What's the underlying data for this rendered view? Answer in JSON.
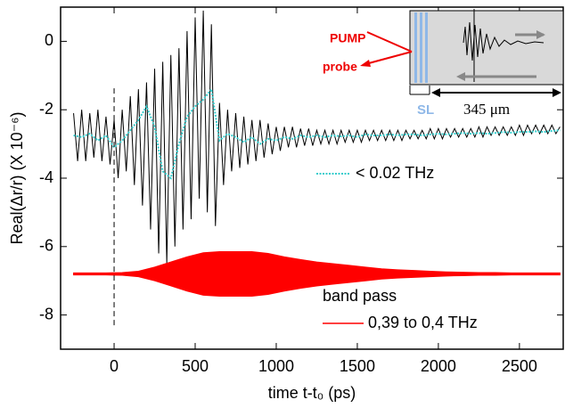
{
  "chart_data": {
    "type": "line",
    "xlabel": "time t-t₀ (ps)",
    "ylabel": "Real(Δr/r) (X 10⁻⁶)",
    "xlim": [
      -330,
      2770
    ],
    "ylim": [
      -9,
      1
    ],
    "xticks": [
      0,
      500,
      1000,
      1500,
      2000,
      2500
    ],
    "yticks": [
      0,
      -2,
      -4,
      -6,
      -8
    ],
    "vline": {
      "x": 0,
      "ymin": -8.3,
      "ymax": -1.3
    },
    "legend_note": "band pass",
    "series": [
      {
        "name": null,
        "color": "#000000",
        "x": [
          -250,
          -225,
          -200,
          -175,
          -150,
          -125,
          -100,
          -75,
          -50,
          -25,
          0,
          25,
          50,
          75,
          100,
          125,
          150,
          175,
          200,
          225,
          250,
          275,
          300,
          325,
          350,
          375,
          400,
          425,
          450,
          475,
          500,
          525,
          550,
          575,
          600,
          625,
          650,
          675,
          700,
          725,
          750,
          775,
          800,
          825,
          850,
          875,
          900,
          925,
          950,
          975,
          1000,
          1025,
          1050,
          1075,
          1100,
          1125,
          1150,
          1175,
          1200,
          1225,
          1250,
          1275,
          1300,
          1325,
          1350,
          1375,
          1400,
          1425,
          1450,
          1475,
          1500,
          1525,
          1550,
          1575,
          1600,
          1625,
          1650,
          1675,
          1700,
          1725,
          1750,
          1775,
          1800,
          1825,
          1850,
          1875,
          1900,
          1925,
          1950,
          1975,
          2000,
          2025,
          2050,
          2075,
          2100,
          2125,
          2150,
          2175,
          2200,
          2225,
          2250,
          2275,
          2300,
          2325,
          2350,
          2375,
          2400,
          2425,
          2450,
          2475,
          2500,
          2525,
          2550,
          2575,
          2600,
          2625,
          2650,
          2675,
          2700,
          2725,
          2750
        ],
        "values": [
          -2.1,
          -3.5,
          -2.0,
          -3.5,
          -2.1,
          -3.4,
          -2.0,
          -3.5,
          -2.2,
          -3.6,
          -2.3,
          -4.0,
          -2.0,
          -3.8,
          -1.6,
          -4.2,
          -1.4,
          -4.8,
          -1.2,
          -5.5,
          -0.8,
          -6.2,
          -0.6,
          -6.5,
          -0.4,
          -6.0,
          -0.2,
          -5.5,
          0.3,
          -5.2,
          0.7,
          -4.6,
          0.9,
          -5.0,
          0.5,
          -5.4,
          -1.8,
          -4.2,
          -2.0,
          -3.8,
          -2.1,
          -3.7,
          -2.2,
          -3.6,
          -2.3,
          -3.5,
          -2.3,
          -3.4,
          -2.4,
          -3.3,
          -2.5,
          -3.2,
          -2.5,
          -3.1,
          -2.5,
          -3.1,
          -2.55,
          -3.05,
          -2.55,
          -3.05,
          -2.6,
          -3.0,
          -2.6,
          -3.0,
          -2.6,
          -3.0,
          -2.6,
          -2.95,
          -2.6,
          -2.95,
          -2.6,
          -2.95,
          -2.6,
          -2.9,
          -2.6,
          -2.9,
          -2.6,
          -2.9,
          -2.6,
          -2.9,
          -2.6,
          -2.9,
          -2.6,
          -2.85,
          -2.6,
          -2.85,
          -2.6,
          -2.85,
          -2.55,
          -2.85,
          -2.55,
          -2.85,
          -2.55,
          -2.8,
          -2.55,
          -2.8,
          -2.55,
          -2.8,
          -2.55,
          -2.8,
          -2.5,
          -2.8,
          -2.5,
          -2.75,
          -2.5,
          -2.75,
          -2.5,
          -2.75,
          -2.5,
          -2.75,
          -2.45,
          -2.75,
          -2.45,
          -2.7,
          -2.45,
          -2.7,
          -2.45,
          -2.7,
          -2.45,
          -2.7,
          -2.5
        ]
      },
      {
        "name": "< 0.02 THz",
        "color": "#33cccc",
        "x": [
          -250,
          -200,
          -150,
          -100,
          -50,
          0,
          50,
          100,
          150,
          200,
          250,
          300,
          350,
          400,
          450,
          500,
          550,
          600,
          650,
          700,
          750,
          800,
          850,
          900,
          950,
          1000,
          1050,
          1100,
          1150,
          1200,
          1250,
          1300,
          1350,
          1400,
          1450,
          1500,
          1550,
          1600,
          1650,
          1700,
          1750,
          1800,
          1850,
          1900,
          1950,
          2000,
          2050,
          2100,
          2150,
          2200,
          2250,
          2300,
          2350,
          2400,
          2450,
          2500,
          2550,
          2600,
          2650,
          2700,
          2750
        ],
        "values": [
          -2.75,
          -2.8,
          -2.7,
          -2.9,
          -2.75,
          -3.1,
          -2.9,
          -2.6,
          -2.3,
          -1.9,
          -2.5,
          -3.8,
          -4.0,
          -3.0,
          -2.2,
          -1.9,
          -1.7,
          -1.4,
          -2.9,
          -2.7,
          -2.8,
          -2.95,
          -2.8,
          -3.0,
          -2.85,
          -2.9,
          -2.8,
          -2.85,
          -2.75,
          -2.8,
          -2.75,
          -2.8,
          -2.75,
          -2.78,
          -2.75,
          -2.8,
          -2.72,
          -2.75,
          -2.75,
          -2.72,
          -2.75,
          -2.72,
          -2.72,
          -2.75,
          -2.72,
          -2.7,
          -2.72,
          -2.7,
          -2.68,
          -2.7,
          -2.68,
          -2.7,
          -2.68,
          -2.65,
          -2.67,
          -2.65,
          -2.65,
          -2.63,
          -2.65,
          -2.62,
          -2.6
        ]
      },
      {
        "name": "0,39 to 0,4 THz",
        "color": "#ff0000",
        "x": [
          -250,
          -150,
          -50,
          50,
          150,
          250,
          350,
          450,
          550,
          650,
          750,
          850,
          950,
          1050,
          1150,
          1250,
          1350,
          1450,
          1550,
          1650,
          1750,
          1850,
          1950,
          2050,
          2150,
          2250,
          2350,
          2450,
          2550,
          2650,
          2750
        ],
        "high": [
          -6.77,
          -6.77,
          -6.77,
          -6.76,
          -6.72,
          -6.6,
          -6.45,
          -6.3,
          -6.18,
          -6.15,
          -6.15,
          -6.15,
          -6.2,
          -6.3,
          -6.38,
          -6.45,
          -6.5,
          -6.55,
          -6.6,
          -6.65,
          -6.68,
          -6.7,
          -6.72,
          -6.74,
          -6.75,
          -6.76,
          -6.76,
          -6.77,
          -6.77,
          -6.77,
          -6.77
        ],
        "low": [
          -6.83,
          -6.83,
          -6.83,
          -6.84,
          -6.88,
          -7.0,
          -7.15,
          -7.3,
          -7.42,
          -7.45,
          -7.45,
          -7.45,
          -7.4,
          -7.3,
          -7.22,
          -7.15,
          -7.1,
          -7.05,
          -7.0,
          -6.95,
          -6.92,
          -6.9,
          -6.88,
          -6.86,
          -6.85,
          -6.84,
          -6.84,
          -6.83,
          -6.83,
          -6.83,
          -6.83
        ]
      }
    ],
    "inset": {
      "pump": "PUMP",
      "probe": "probe",
      "sl": "SL",
      "length": "345 μm"
    }
  }
}
